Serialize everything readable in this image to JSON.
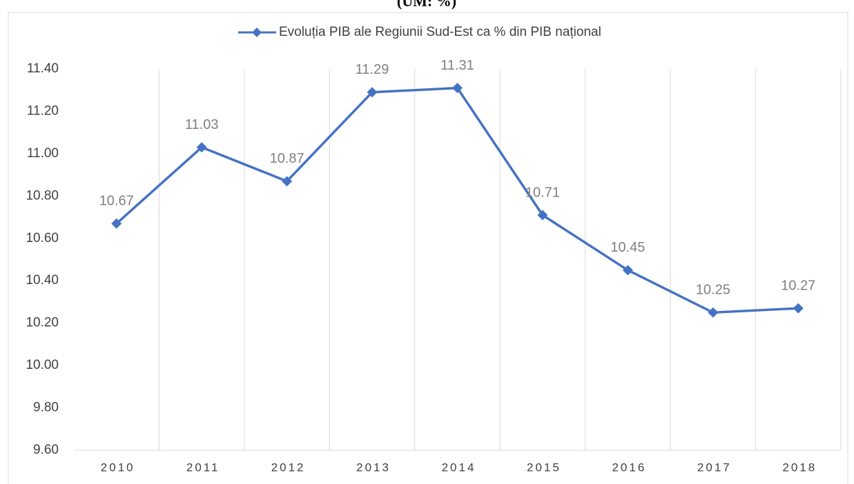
{
  "chart_data": {
    "type": "line",
    "title": "(UM: %)",
    "categories": [
      "2010",
      "2011",
      "2012",
      "2013",
      "2014",
      "2015",
      "2016",
      "2017",
      "2018"
    ],
    "series": [
      {
        "name": "Evoluția PIB ale Regiunii Sud-Est ca % din PIB național",
        "color": "#4472c4",
        "values": [
          10.67,
          11.03,
          10.87,
          11.29,
          11.31,
          10.71,
          10.45,
          10.25,
          10.27
        ]
      }
    ],
    "ylim": [
      9.6,
      11.4
    ],
    "yticks": [
      {
        "value": 9.6,
        "label": "9.60"
      },
      {
        "value": 9.8,
        "label": "9.80"
      },
      {
        "value": 10.0,
        "label": "10.00"
      },
      {
        "value": 10.2,
        "label": "10.20"
      },
      {
        "value": 10.4,
        "label": "10.40"
      },
      {
        "value": 10.6,
        "label": "10.60"
      },
      {
        "value": 10.8,
        "label": "10.80"
      },
      {
        "value": 11.0,
        "label": "11.00"
      },
      {
        "value": 11.2,
        "label": "11.20"
      },
      {
        "value": 11.4,
        "label": "11.40"
      }
    ],
    "grid": false,
    "legend": "top"
  }
}
